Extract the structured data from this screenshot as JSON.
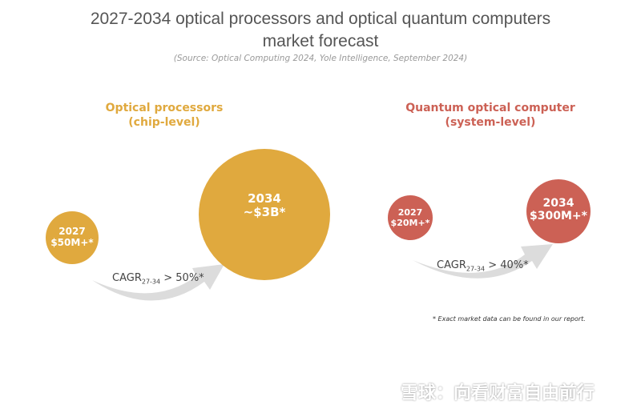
{
  "header": {
    "title": "2027-2034 optical processors and optical quantum computers market forecast",
    "source": "(Source: Optical Computing 2024, Yole Intelligence, September 2024)"
  },
  "panels": [
    {
      "title": "Optical processors",
      "subtitle": "(chip-level)",
      "start": {
        "year": "2027",
        "value": "$50M+*"
      },
      "end": {
        "year": "2034",
        "value": "~$3B*"
      },
      "cagr": {
        "label": "CAGR",
        "period": "27-34",
        "value": "> 50%*"
      }
    },
    {
      "title": "Quantum optical computer",
      "subtitle": "(system-level)",
      "start": {
        "year": "2027",
        "value": "$20M+*"
      },
      "end": {
        "year": "2034",
        "value": "$300M+*"
      },
      "cagr": {
        "label": "CAGR",
        "period": "27-34",
        "value": "> 40%*"
      }
    }
  ],
  "footnote": "* Exact market data can be found in our report.",
  "watermark": "雪球：向看财富自由前行"
}
